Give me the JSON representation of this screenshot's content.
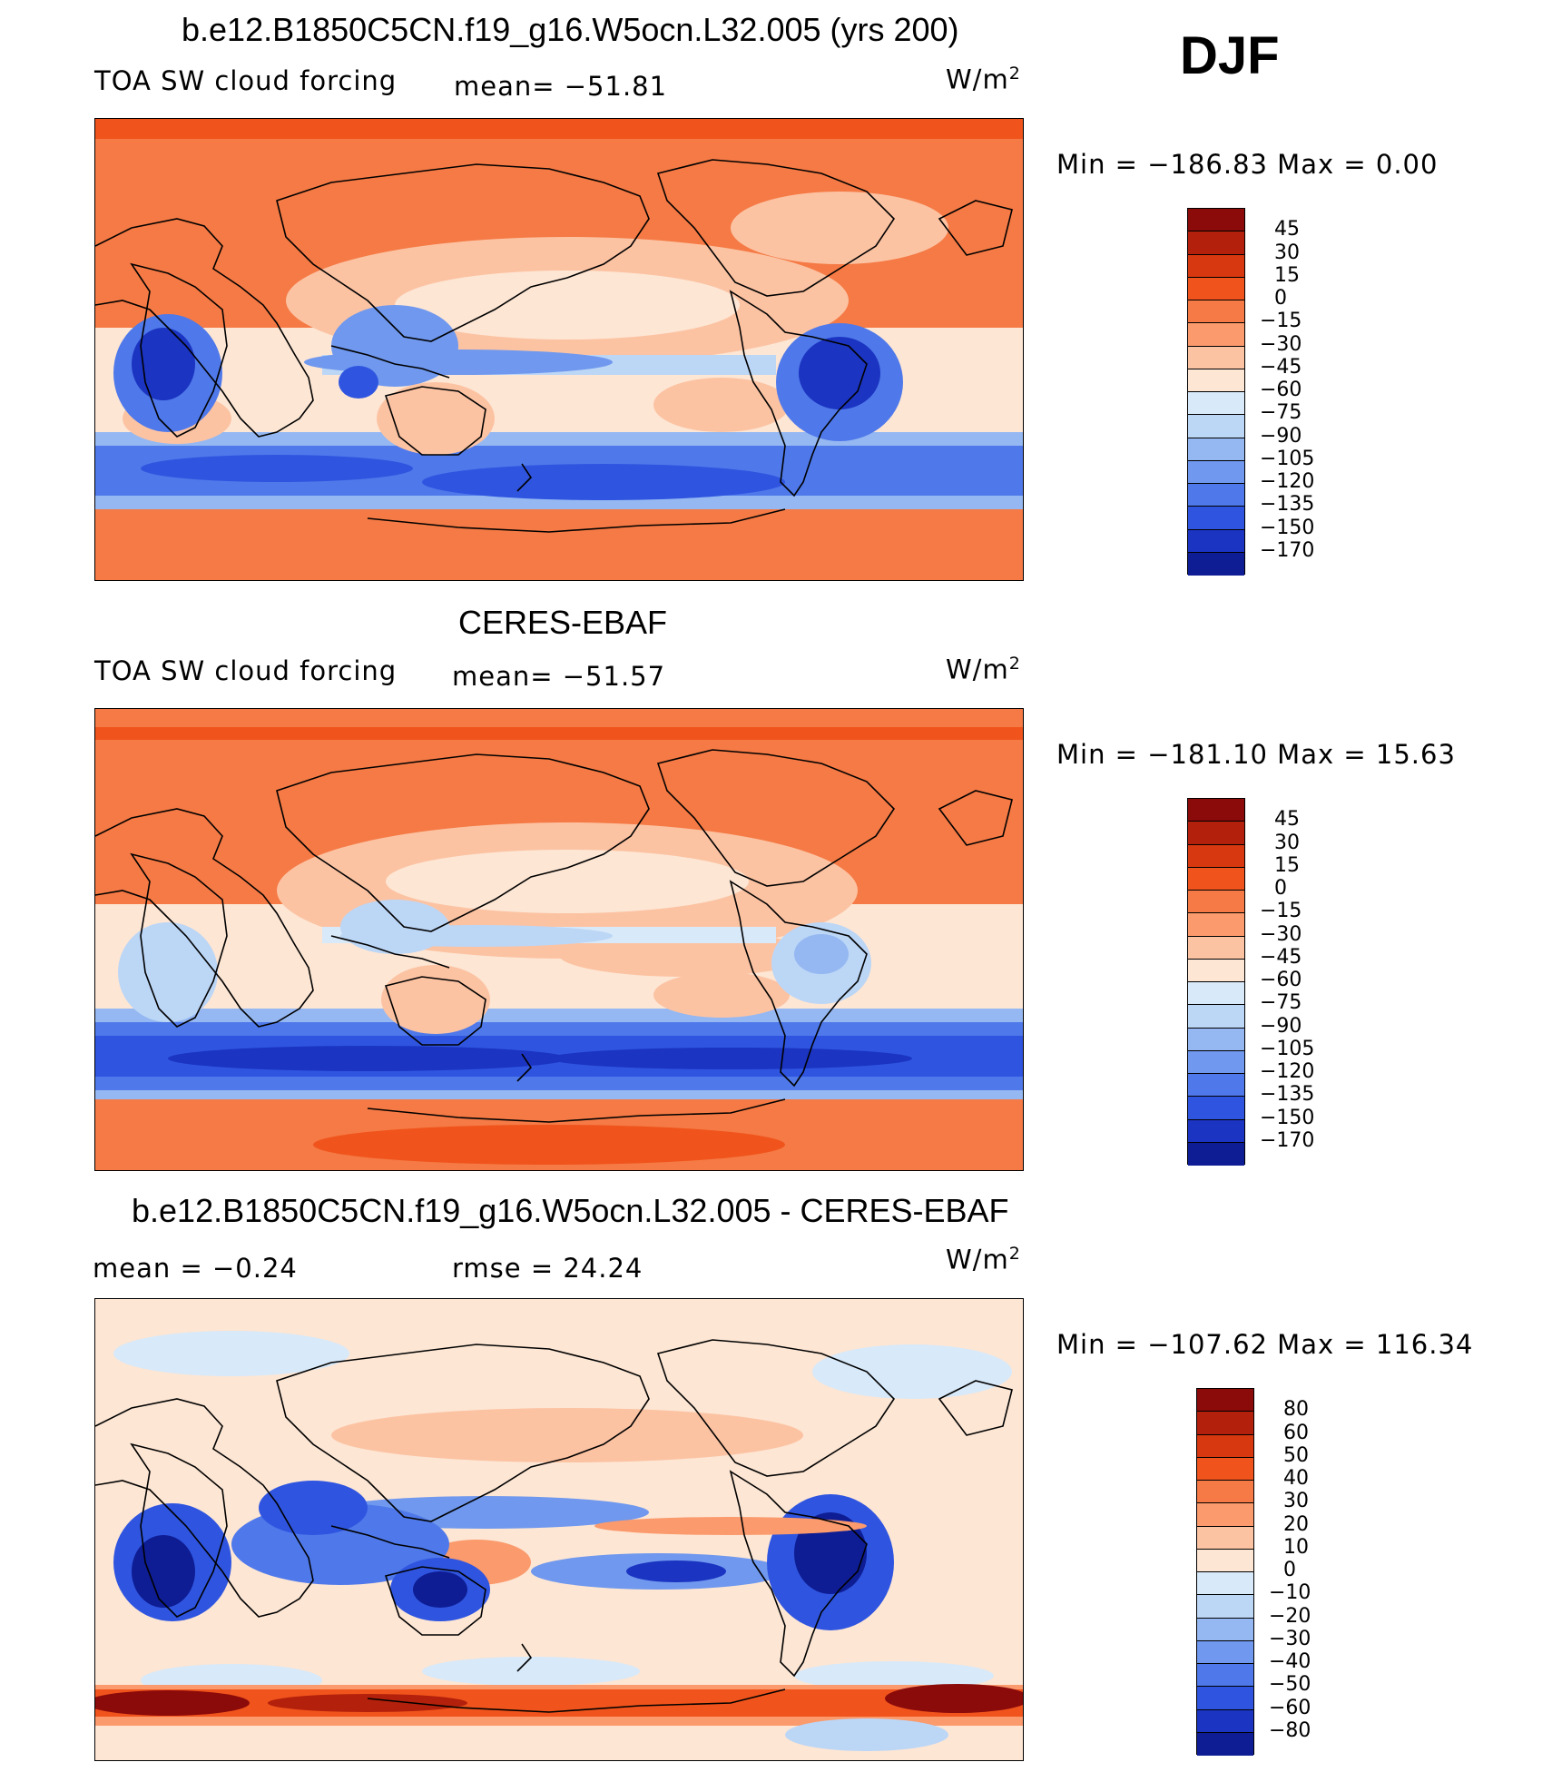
{
  "season": "DJF",
  "panels": [
    {
      "title": "b.e12.B1850C5CN.f19_g16.W5ocn.L32.005 (yrs 200)",
      "left_label": "TOA SW cloud forcing",
      "center_label": "mean= −51.81",
      "units_base": "W/m",
      "units_exp": "2",
      "minmax": "Min = −186.83 Max =    0.00",
      "levels": [
        "45",
        "30",
        "15",
        "0",
        "−15",
        "−30",
        "−45",
        "−60",
        "−75",
        "−90",
        "−105",
        "−120",
        "−135",
        "−150",
        "−170"
      ],
      "colors": [
        "#8b0a0a",
        "#b3200b",
        "#d8380f",
        "#f0541c",
        "#f57a45",
        "#fb9a6c",
        "#fcc3a3",
        "#fde6d4",
        "#d8e9f9",
        "#bcd6f6",
        "#95b8f2",
        "#6f98ee",
        "#4f79ea",
        "#2f55e0",
        "#1b34c2",
        "#0e1d94"
      ]
    },
    {
      "title": "CERES-EBAF",
      "left_label": "TOA SW cloud forcing",
      "center_label": "mean= −51.57",
      "units_base": "W/m",
      "units_exp": "2",
      "minmax": "Min = −181.10 Max =   15.63",
      "levels": [
        "45",
        "30",
        "15",
        "0",
        "−15",
        "−30",
        "−45",
        "−60",
        "−75",
        "−90",
        "−105",
        "−120",
        "−135",
        "−150",
        "−170"
      ],
      "colors": [
        "#8b0a0a",
        "#b3200b",
        "#d8380f",
        "#f0541c",
        "#f57a45",
        "#fb9a6c",
        "#fcc3a3",
        "#fde6d4",
        "#d8e9f9",
        "#bcd6f6",
        "#95b8f2",
        "#6f98ee",
        "#4f79ea",
        "#2f55e0",
        "#1b34c2",
        "#0e1d94"
      ]
    },
    {
      "title": "b.e12.B1850C5CN.f19_g16.W5ocn.L32.005 - CERES-EBAF",
      "left_label": "mean =    −0.24",
      "center_label": "rmse =   24.24",
      "units_base": "W/m",
      "units_exp": "2",
      "minmax": "Min = −107.62 Max = 116.34",
      "levels": [
        "80",
        "60",
        "50",
        "40",
        "30",
        "20",
        "10",
        "0",
        "−10",
        "−20",
        "−30",
        "−40",
        "−50",
        "−60",
        "−80"
      ],
      "colors": [
        "#8b0a0a",
        "#b3200b",
        "#d8380f",
        "#f0541c",
        "#f57a45",
        "#fb9a6c",
        "#fcc3a3",
        "#fde6d4",
        "#d8e9f9",
        "#bcd6f6",
        "#95b8f2",
        "#6f98ee",
        "#4f79ea",
        "#2f55e0",
        "#1b34c2",
        "#0e1d94"
      ]
    }
  ]
}
